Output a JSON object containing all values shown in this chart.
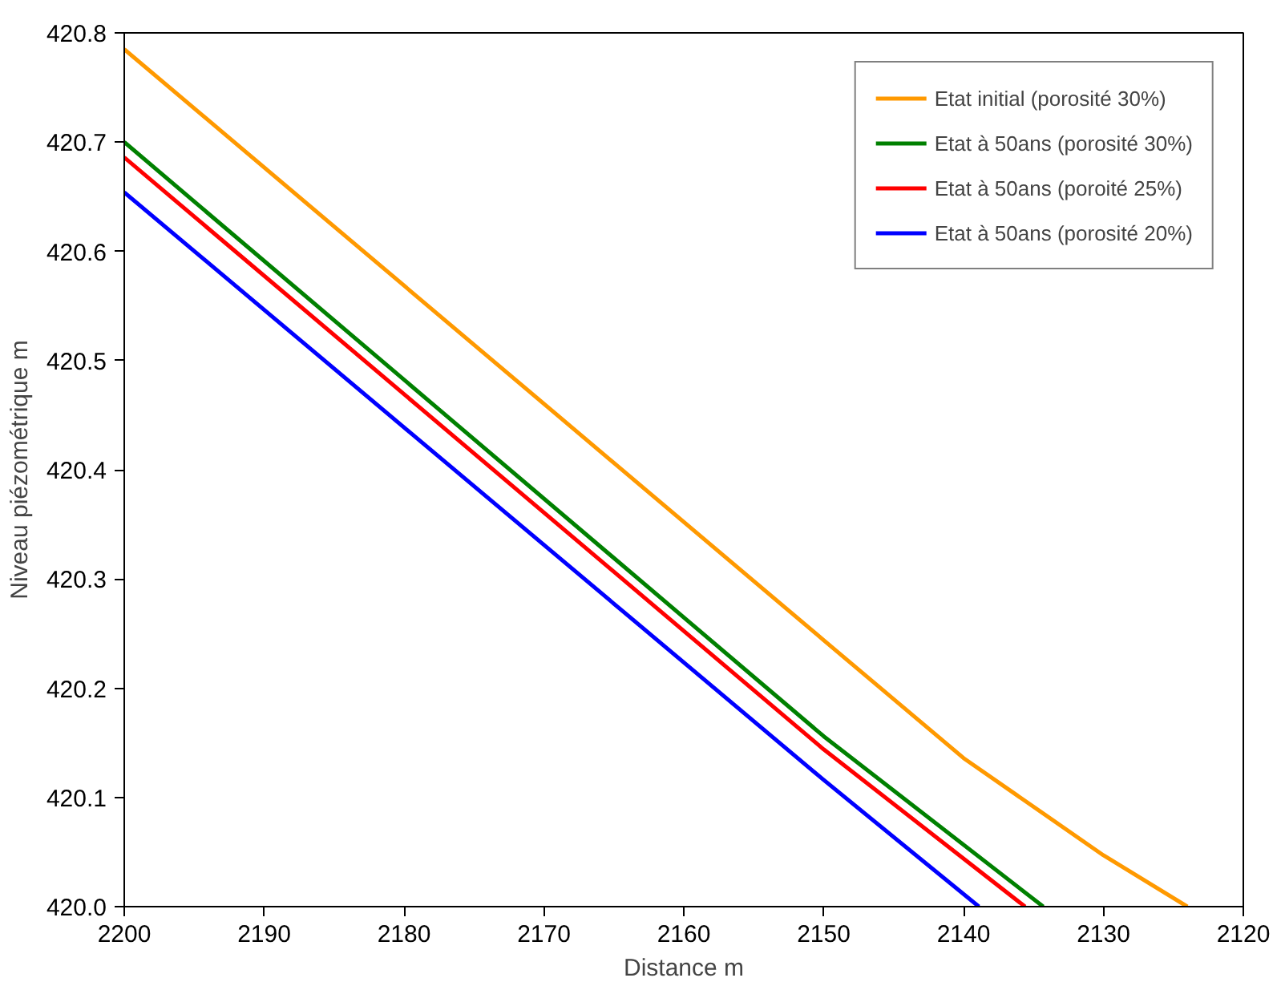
{
  "chart_data": {
    "type": "line",
    "xlabel": "Distance m",
    "ylabel": "Niveau piézométrique m",
    "xlim": [
      2200,
      2120
    ],
    "ylim": [
      420.0,
      420.8
    ],
    "xticks": [
      2200,
      2190,
      2180,
      2170,
      2160,
      2150,
      2140,
      2130,
      2120
    ],
    "yticks": [
      {
        "value": 420.0,
        "label": "420.0"
      },
      420.1,
      420.2,
      420.3,
      420.4,
      420.5,
      420.6,
      420.7,
      420.8
    ],
    "grid": false,
    "legend": "top right",
    "line_style": "solid",
    "series": [
      {
        "name": "Etat initial (porosité 30%)",
        "color": "#ff9900",
        "x": [
          2200,
          2150,
          2140,
          2130,
          2124
        ],
        "values": [
          420.785,
          420.244,
          420.136,
          420.047,
          420.0
        ]
      },
      {
        "name": "Etat à 50ans (porosité 30%)",
        "color": "#008000",
        "x": [
          2200,
          2150,
          2134.3
        ],
        "values": [
          420.7,
          420.156,
          420.0
        ]
      },
      {
        "name": "Etat à 50ans (poroité 25%)",
        "color": "#ff0000",
        "x": [
          2200,
          2150,
          2135.6
        ],
        "values": [
          420.686,
          420.144,
          420.0
        ]
      },
      {
        "name": "Etat à 50ans (porosité 20%)",
        "color": "#0000ff",
        "x": [
          2200,
          2150,
          2138.9
        ],
        "values": [
          420.654,
          420.116,
          420.0
        ]
      }
    ]
  }
}
